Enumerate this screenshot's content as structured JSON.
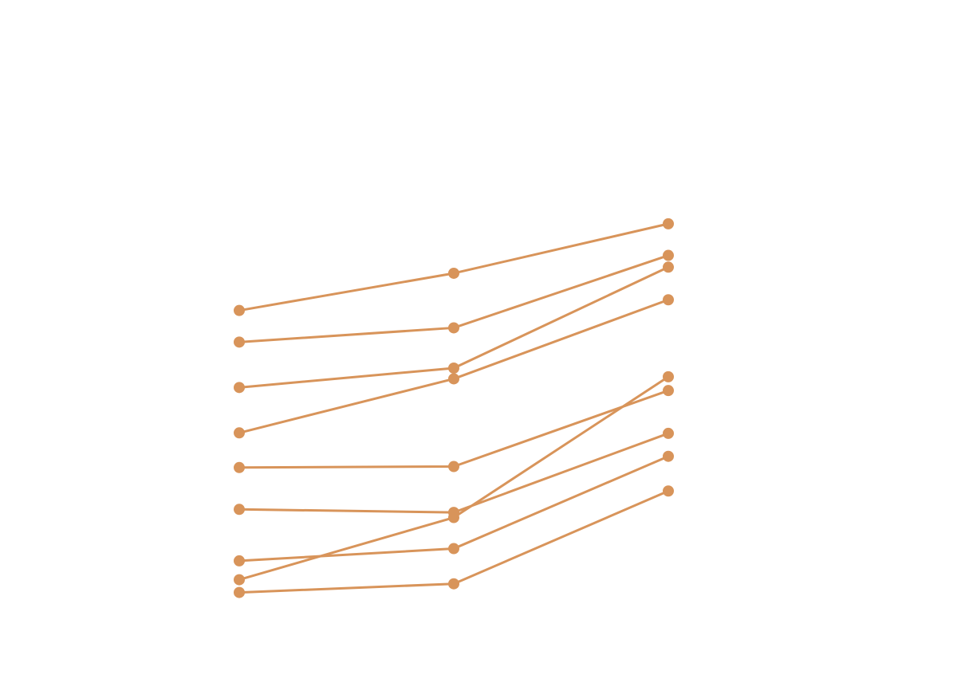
{
  "chart_data": {
    "type": "line",
    "title": "",
    "xlabel": "",
    "ylabel": "",
    "x": [
      0,
      1,
      2
    ],
    "ylim": [
      0,
      10
    ],
    "grid": false,
    "legend": "none",
    "colors": {
      "line": "#d8945a",
      "marker": "#d8945a",
      "background": "#ffffff"
    },
    "series": [
      {
        "values": [
          5.63,
          6.36,
          7.33
        ]
      },
      {
        "values": [
          5.01,
          5.29,
          6.71
        ]
      },
      {
        "values": [
          4.12,
          4.5,
          6.48
        ]
      },
      {
        "values": [
          3.23,
          4.29,
          5.84
        ]
      },
      {
        "values": [
          2.55,
          2.57,
          4.06
        ]
      },
      {
        "values": [
          1.73,
          1.67,
          3.22
        ]
      },
      {
        "values": [
          0.72,
          0.96,
          2.77
        ]
      },
      {
        "values": [
          0.35,
          1.57,
          4.33
        ]
      },
      {
        "values": [
          0.1,
          0.27,
          2.09
        ]
      }
    ]
  }
}
